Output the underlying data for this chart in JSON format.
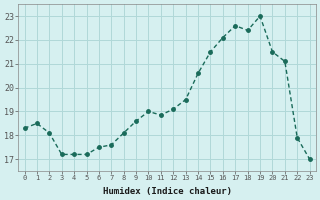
{
  "xlabel": "Humidex (Indice chaleur)",
  "ylabel": "",
  "x_values": [
    0,
    1,
    2,
    3,
    4,
    5,
    6,
    7,
    8,
    9,
    10,
    11,
    12,
    13,
    14,
    15,
    16,
    17,
    18,
    19,
    20,
    21,
    22,
    23
  ],
  "y_values": [
    18.3,
    18.5,
    18.1,
    17.2,
    17.2,
    17.2,
    17.5,
    17.6,
    18.1,
    18.6,
    19.0,
    18.85,
    19.1,
    19.5,
    20.6,
    21.5,
    22.1,
    22.6,
    22.4,
    23.0,
    21.5,
    21.1,
    17.9,
    17.0
  ],
  "line_color": "#1a6b5a",
  "marker_color": "#1a6b5a",
  "bg_color": "#d6f0f0",
  "grid_color": "#b0d8d8",
  "tick_label_color": "#1a1a1a",
  "xlim": [
    -0.5,
    23.5
  ],
  "ylim": [
    16.5,
    23.5
  ],
  "yticks": [
    17,
    18,
    19,
    20,
    21,
    22,
    23
  ],
  "xticks": [
    0,
    1,
    2,
    3,
    4,
    5,
    6,
    7,
    8,
    9,
    10,
    11,
    12,
    13,
    14,
    15,
    16,
    17,
    18,
    19,
    20,
    21,
    22,
    23
  ]
}
